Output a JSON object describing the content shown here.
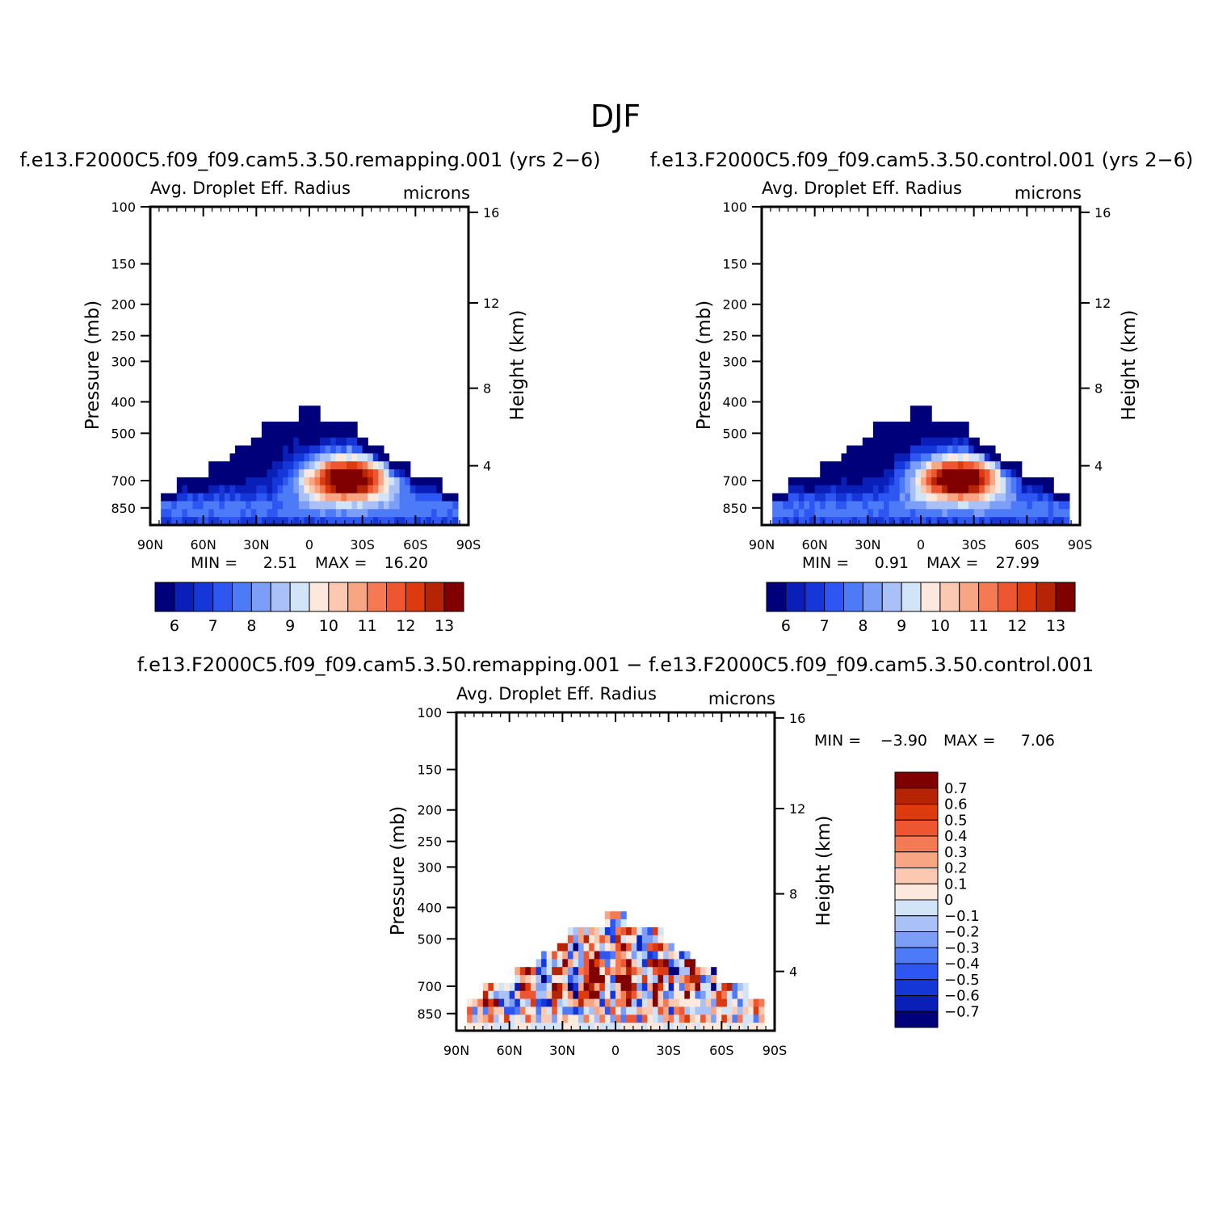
{
  "figure": {
    "title": "DJF"
  },
  "palette": {
    "levels": [
      "#00007a",
      "#0a1fb8",
      "#1637d8",
      "#2e56f2",
      "#4d7af7",
      "#7c9ef7",
      "#a9c1f6",
      "#d2e4f8",
      "#fde8dd",
      "#fbc9b1",
      "#f8a584",
      "#f47a53",
      "#ee5632",
      "#dd3a10",
      "#b52404",
      "#800000"
    ]
  },
  "chart_data": [
    {
      "type": "heatmap",
      "id": "remap",
      "title": "f.e13.F2000C5.f09_f09.cam5.3.50.remapping.001 (yrs 2−6)",
      "variable": "Avg. Droplet Eff. Radius",
      "units": "microns",
      "ylabel": "Pressure (mb)",
      "y2label": "Height (km)",
      "x_ticks": [
        "90N",
        "60N",
        "30N",
        "0",
        "30S",
        "60S",
        "90S"
      ],
      "y_ticks": [
        "100",
        "150",
        "200",
        "250",
        "300",
        "400",
        "500",
        "700",
        "850"
      ],
      "y2_ticks": [
        "16",
        "12",
        "8",
        "4"
      ],
      "min_label": "MIN =",
      "min_value": "2.51",
      "max_label": "MAX =",
      "max_value": "16.20",
      "colorbar_labels": [
        "6",
        "7",
        "8",
        "9",
        "10",
        "11",
        "12",
        "13"
      ],
      "seed": 11,
      "field": "mean"
    },
    {
      "type": "heatmap",
      "id": "control",
      "title": "f.e13.F2000C5.f09_f09.cam5.3.50.control.001 (yrs 2−6)",
      "variable": "Avg. Droplet Eff. Radius",
      "units": "microns",
      "ylabel": "Pressure (mb)",
      "y2label": "Height (km)",
      "x_ticks": [
        "90N",
        "60N",
        "30N",
        "0",
        "30S",
        "60S",
        "90S"
      ],
      "y_ticks": [
        "100",
        "150",
        "200",
        "250",
        "300",
        "400",
        "500",
        "700",
        "850"
      ],
      "y2_ticks": [
        "16",
        "12",
        "8",
        "4"
      ],
      "min_label": "MIN =",
      "min_value": "0.91",
      "max_label": "MAX =",
      "max_value": "27.99",
      "colorbar_labels": [
        "6",
        "7",
        "8",
        "9",
        "10",
        "11",
        "12",
        "13"
      ],
      "seed": 23,
      "field": "mean"
    },
    {
      "type": "heatmap",
      "id": "diff",
      "title": "f.e13.F2000C5.f09_f09.cam5.3.50.remapping.001 − f.e13.F2000C5.f09_f09.cam5.3.50.control.001",
      "variable": "Avg. Droplet Eff. Radius",
      "units": "microns",
      "ylabel": "Pressure (mb)",
      "y2label": "Height (km)",
      "x_ticks": [
        "90N",
        "60N",
        "30N",
        "0",
        "30S",
        "60S",
        "90S"
      ],
      "y_ticks": [
        "100",
        "150",
        "200",
        "250",
        "300",
        "400",
        "500",
        "700",
        "850"
      ],
      "y2_ticks": [
        "16",
        "12",
        "8",
        "4"
      ],
      "min_label": "MIN =",
      "min_value": "−3.90",
      "max_label": "MAX =",
      "max_value": "7.06",
      "colorbar_labels": [
        "0.7",
        "0.6",
        "0.5",
        "0.4",
        "0.3",
        "0.2",
        "0.1",
        "0",
        "−0.1",
        "−0.2",
        "−0.3",
        "−0.4",
        "−0.5",
        "−0.6",
        "−0.7"
      ],
      "seed": 37,
      "field": "diff"
    }
  ]
}
